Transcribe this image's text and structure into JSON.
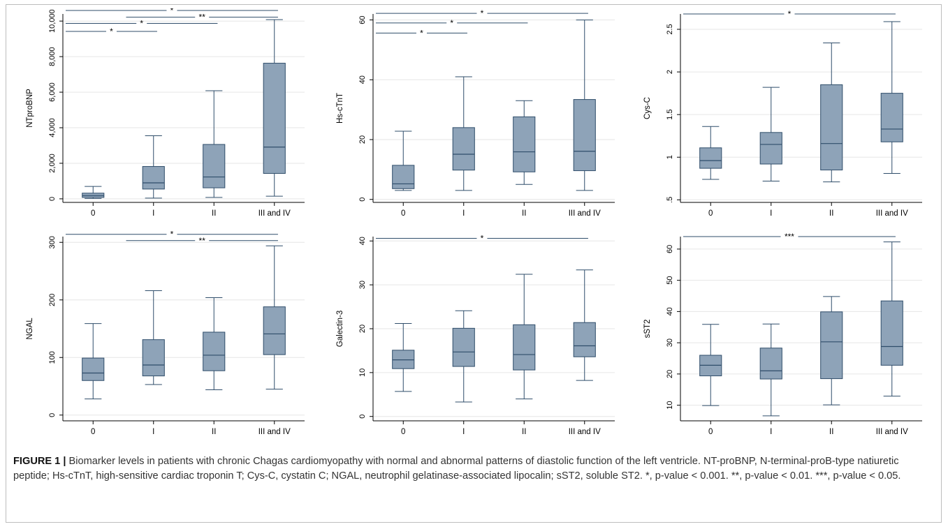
{
  "caption": {
    "label": "FIGURE 1 |",
    "text": "Biomarker levels in patients with chronic Chagas cardiomyopathy with normal and abnormal patterns of diastolic function of the left ventricle. NT-proBNP, N-terminal-proB-type natiuretic peptide; Hs-cTnT, high-sensitive cardiac troponin T; Cys-C, cystatin C; NGAL, neutrophil gelatinase-associated lipocalin; sST2, soluble ST2. *, p-value < 0.001. **, p-value < 0.01. ***, p-value < 0.05."
  },
  "colors": {
    "box_fill": "#8ea3b8",
    "box_stroke": "#2f4d6a",
    "grid": "#e6e6e6",
    "axis": "#000000"
  },
  "chart_data": [
    {
      "type": "box",
      "ylabel": "NTproBNP",
      "categories": [
        "0",
        "I",
        "II",
        "III and IV"
      ],
      "ylim": [
        -200,
        10400
      ],
      "yticks": [
        0,
        2000,
        4000,
        6000,
        8000,
        10000
      ],
      "ytick_labels": [
        "0",
        "2,000",
        "4,000",
        "6,000",
        "8,000",
        "10,000"
      ],
      "boxes": [
        {
          "whisker_low": 20,
          "q1": 80,
          "median": 180,
          "q3": 320,
          "whisker_high": 700
        },
        {
          "whisker_low": 40,
          "q1": 550,
          "median": 900,
          "q3": 1820,
          "whisker_high": 3550
        },
        {
          "whisker_low": 80,
          "q1": 620,
          "median": 1230,
          "q3": 3060,
          "whisker_high": 6080
        },
        {
          "whisker_low": 150,
          "q1": 1430,
          "median": 2910,
          "q3": 7630,
          "whisker_high": 10080
        }
      ],
      "significance": [
        {
          "from": 0,
          "to": 3,
          "label": "*",
          "y": 10700
        },
        {
          "from": 1,
          "to": 3,
          "label": "**",
          "y": 10220
        },
        {
          "from": 0,
          "to": 2,
          "label": "*",
          "y": 9870
        },
        {
          "from": 0,
          "to": 1,
          "label": "*",
          "y": 9420
        }
      ]
    },
    {
      "type": "box",
      "ylabel": "Hs-cTnT",
      "categories": [
        "0",
        "I",
        "II",
        "III and IV"
      ],
      "ylim": [
        -1,
        62
      ],
      "yticks": [
        0,
        20,
        40,
        60
      ],
      "ytick_labels": [
        "0",
        "20",
        "40",
        "60"
      ],
      "boxes": [
        {
          "whisker_low": 3,
          "q1": 3.6,
          "median": 5.2,
          "q3": 11.4,
          "whisker_high": 22.8
        },
        {
          "whisker_low": 3,
          "q1": 9.8,
          "median": 15.1,
          "q3": 24,
          "whisker_high": 41
        },
        {
          "whisker_low": 5,
          "q1": 9.2,
          "median": 15.9,
          "q3": 27.6,
          "whisker_high": 33
        },
        {
          "whisker_low": 3,
          "q1": 9.6,
          "median": 16.1,
          "q3": 33.4,
          "whisker_high": 60
        }
      ],
      "significance": [
        {
          "from": 0,
          "to": 3,
          "label": "*",
          "y": 62.2
        },
        {
          "from": 0,
          "to": 2,
          "label": "*",
          "y": 59
        },
        {
          "from": 0,
          "to": 1,
          "label": "*",
          "y": 55.6
        }
      ]
    },
    {
      "type": "box",
      "ylabel": "Cys-C",
      "categories": [
        "0",
        "I",
        "II",
        "III and IV"
      ],
      "ylim": [
        0.47,
        2.68
      ],
      "yticks": [
        0.5,
        1,
        1.5,
        2,
        2.5
      ],
      "ytick_labels": [
        ".5",
        "1",
        "1.5",
        "2",
        "2.5"
      ],
      "boxes": [
        {
          "whisker_low": 0.74,
          "q1": 0.87,
          "median": 0.96,
          "q3": 1.11,
          "whisker_high": 1.36
        },
        {
          "whisker_low": 0.72,
          "q1": 0.92,
          "median": 1.15,
          "q3": 1.29,
          "whisker_high": 1.82
        },
        {
          "whisker_low": 0.71,
          "q1": 0.85,
          "median": 1.16,
          "q3": 1.85,
          "whisker_high": 2.34
        },
        {
          "whisker_low": 0.81,
          "q1": 1.18,
          "median": 1.33,
          "q3": 1.75,
          "whisker_high": 2.59
        }
      ],
      "significance": [
        {
          "from": 0,
          "to": 3,
          "label": "*",
          "y": 2.68
        }
      ]
    },
    {
      "type": "box",
      "ylabel": "NGAL",
      "categories": [
        "0",
        "I",
        "II",
        "III and IV"
      ],
      "ylim": [
        -10,
        310
      ],
      "yticks": [
        0,
        100,
        200,
        300
      ],
      "ytick_labels": [
        "0",
        "100",
        "200",
        "300"
      ],
      "boxes": [
        {
          "whisker_low": 28,
          "q1": 60,
          "median": 73,
          "q3": 99,
          "whisker_high": 159
        },
        {
          "whisker_low": 53,
          "q1": 68,
          "median": 87,
          "q3": 131,
          "whisker_high": 216
        },
        {
          "whisker_low": 44,
          "q1": 77,
          "median": 104,
          "q3": 144,
          "whisker_high": 204
        },
        {
          "whisker_low": 45,
          "q1": 105,
          "median": 141,
          "q3": 188,
          "whisker_high": 294
        }
      ],
      "significance": [
        {
          "from": 0,
          "to": 3,
          "label": "*",
          "y": 314
        },
        {
          "from": 1,
          "to": 3,
          "label": "**",
          "y": 303
        }
      ]
    },
    {
      "type": "box",
      "ylabel": "Galectin-3",
      "categories": [
        "0",
        "I",
        "II",
        "III and IV"
      ],
      "ylim": [
        -1,
        41
      ],
      "yticks": [
        0,
        10,
        20,
        30,
        40
      ],
      "ytick_labels": [
        "0",
        "10",
        "20",
        "30",
        "40"
      ],
      "boxes": [
        {
          "whisker_low": 5.7,
          "q1": 10.9,
          "median": 12.9,
          "q3": 15.1,
          "whisker_high": 21.2
        },
        {
          "whisker_low": 3.3,
          "q1": 11.4,
          "median": 14.7,
          "q3": 20.1,
          "whisker_high": 24.1
        },
        {
          "whisker_low": 4,
          "q1": 10.6,
          "median": 14.1,
          "q3": 20.9,
          "whisker_high": 32.4
        },
        {
          "whisker_low": 8.2,
          "q1": 13.6,
          "median": 16.1,
          "q3": 21.4,
          "whisker_high": 33.4
        }
      ],
      "significance": [
        {
          "from": 0,
          "to": 3,
          "label": "*",
          "y": 40.6
        }
      ]
    },
    {
      "type": "box",
      "ylabel": "sST2",
      "categories": [
        "0",
        "I",
        "II",
        "III and IV"
      ],
      "ylim": [
        5,
        64
      ],
      "yticks": [
        10,
        20,
        30,
        40,
        50,
        60
      ],
      "ytick_labels": [
        "10",
        "20",
        "30",
        "40",
        "50",
        "60"
      ],
      "boxes": [
        {
          "whisker_low": 9.9,
          "q1": 19.4,
          "median": 22.8,
          "q3": 26,
          "whisker_high": 35.9
        },
        {
          "whisker_low": 6.6,
          "q1": 18.4,
          "median": 21,
          "q3": 28.3,
          "whisker_high": 36
        },
        {
          "whisker_low": 10.1,
          "q1": 18.5,
          "median": 30.3,
          "q3": 39.9,
          "whisker_high": 44.8
        },
        {
          "whisker_low": 12.9,
          "q1": 22.8,
          "median": 28.8,
          "q3": 43.4,
          "whisker_high": 62.3
        }
      ],
      "significance": [
        {
          "from": 0,
          "to": 3,
          "label": "***",
          "y": 64
        }
      ]
    }
  ]
}
